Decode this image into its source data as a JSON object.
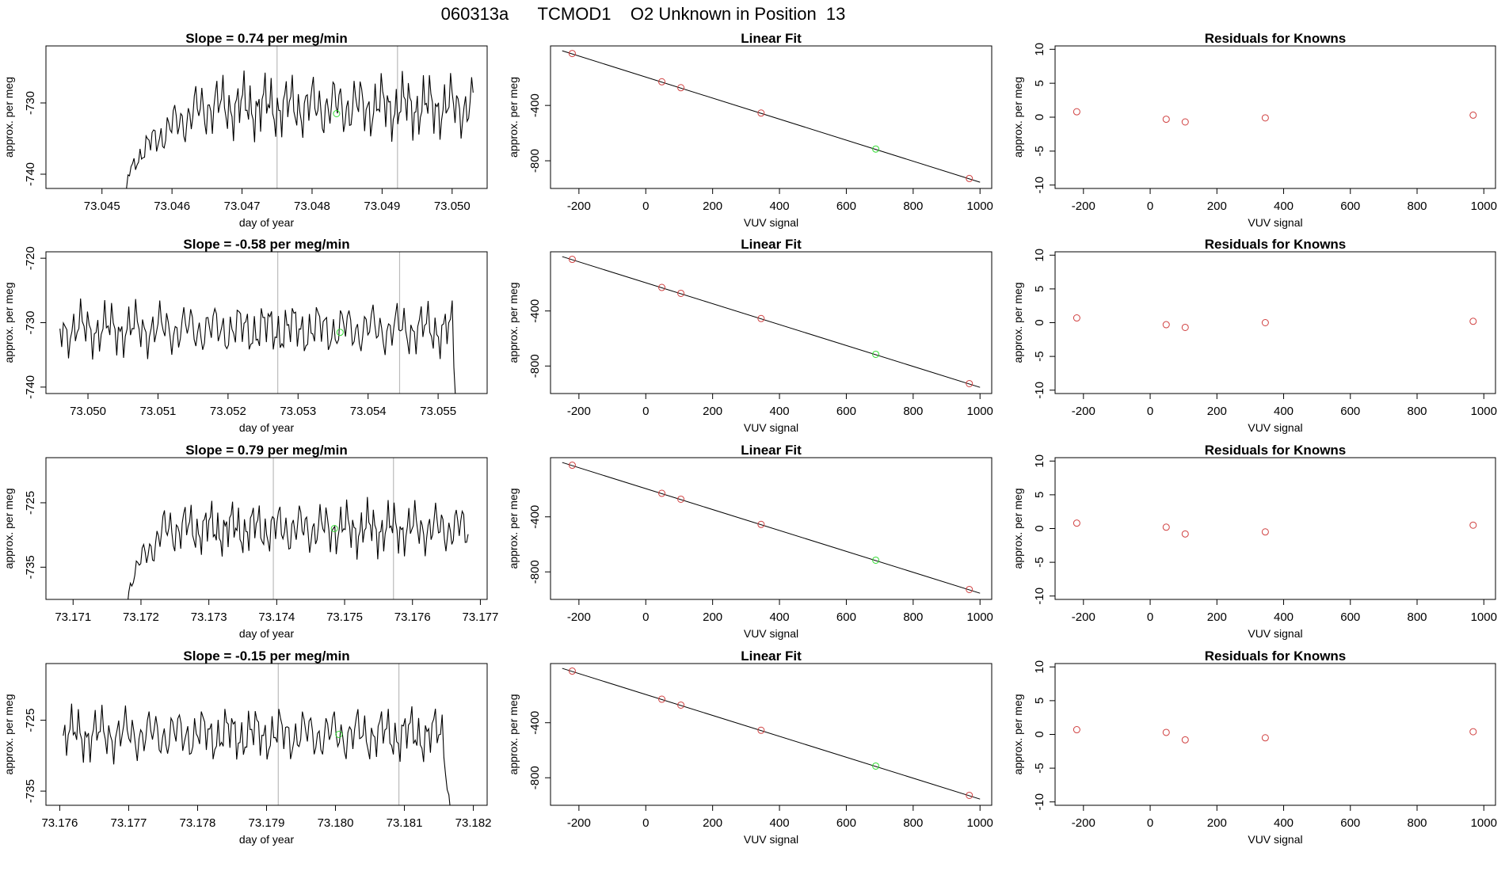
{
  "page_title": "060313a      TCMOD1    O2 Unknown in Position  13",
  "colors": {
    "known": "#d04040",
    "unknown": "#33dd33",
    "line": "#000000",
    "guide": "#bbbbbb",
    "frame": "#000000"
  },
  "chart_data": [
    {
      "row": 1,
      "panel": "timeseries",
      "type": "line",
      "title": "Slope =  0.74  per meg/min",
      "xlabel": "day of year",
      "ylabel": "approx. per meg",
      "xlim": [
        73.0442,
        73.0505
      ],
      "ylim": [
        -742,
        -722
      ],
      "xticks": [
        73.045,
        73.046,
        73.047,
        73.048,
        73.049,
        73.05
      ],
      "xtick_labels": [
        "73.045",
        "73.046",
        "73.047",
        "73.048",
        "73.049",
        "73.050"
      ],
      "yticks": [
        -740,
        -730
      ],
      "ytick_labels": [
        "-740",
        "-730"
      ],
      "series_start": 73.04535,
      "series_end": 73.0503,
      "baseline": -730.5,
      "amplitude": 2.8,
      "ramp_end": 73.0465,
      "ramp_from": -742,
      "vlines": [
        73.0475,
        73.04922
      ],
      "unknown_point": {
        "x": 73.04835,
        "y": -731.5
      }
    },
    {
      "row": 1,
      "panel": "fit",
      "type": "scatter",
      "title": "Linear Fit",
      "xlabel": "VUV signal",
      "ylabel": "approx. per meg",
      "xlim": [
        -285,
        1035
      ],
      "ylim": [
        -1000,
        30
      ],
      "xticks": [
        -200,
        0,
        200,
        400,
        600,
        800,
        1000
      ],
      "xtick_labels": [
        "-200",
        "0",
        "200",
        "400",
        "600",
        "800",
        "1000"
      ],
      "yticks": [
        -800,
        -400
      ],
      "ytick_labels": [
        "-800",
        "-400"
      ],
      "fit_line": {
        "x": [
          -250,
          1000
        ],
        "y": [
          -5,
          -955
        ]
      },
      "known_points": [
        {
          "x": -220,
          "y": -25
        },
        {
          "x": 48,
          "y": -229
        },
        {
          "x": 105,
          "y": -272
        },
        {
          "x": 345,
          "y": -455
        },
        {
          "x": 968,
          "y": -928
        }
      ],
      "unknown_point": {
        "x": 688,
        "y": -715
      }
    },
    {
      "row": 1,
      "panel": "residuals",
      "type": "scatter",
      "title": "Residuals for Knowns",
      "xlabel": "VUV signal",
      "ylabel": "approx. per meg",
      "xlim": [
        -285,
        1035
      ],
      "ylim": [
        -10.5,
        10.5
      ],
      "xticks": [
        -200,
        0,
        200,
        400,
        600,
        800,
        1000
      ],
      "xtick_labels": [
        "-200",
        "0",
        "200",
        "400",
        "600",
        "800",
        "1000"
      ],
      "yticks": [
        -10,
        -5,
        0,
        5,
        10
      ],
      "ytick_labels": [
        "-10",
        "-5",
        "0",
        "5",
        "10"
      ],
      "known_points": [
        {
          "x": -220,
          "y": 0.8
        },
        {
          "x": 48,
          "y": -0.3
        },
        {
          "x": 105,
          "y": -0.7
        },
        {
          "x": 345,
          "y": -0.1
        },
        {
          "x": 968,
          "y": 0.3
        }
      ]
    },
    {
      "row": 2,
      "panel": "timeseries",
      "type": "line",
      "title": "Slope =  -0.58  per meg/min",
      "xlabel": "day of year",
      "ylabel": "approx. per meg",
      "xlim": [
        73.0494,
        73.0557
      ],
      "ylim": [
        -741,
        -719
      ],
      "xticks": [
        73.05,
        73.051,
        73.052,
        73.053,
        73.054,
        73.055
      ],
      "xtick_labels": [
        "73.050",
        "73.051",
        "73.052",
        "73.053",
        "73.054",
        "73.055"
      ],
      "yticks": [
        -740,
        -730,
        -720
      ],
      "ytick_labels": [
        "-740",
        "-730",
        "-720"
      ],
      "series_start": 73.0496,
      "series_end": 73.05525,
      "baseline": -731,
      "amplitude": 2.6,
      "drop_start": 73.0552,
      "drop_to": -742,
      "vlines": [
        73.05271,
        73.05445
      ],
      "unknown_point": {
        "x": 73.0536,
        "y": -731.5
      }
    },
    {
      "row": 2,
      "panel": "fit",
      "type": "scatter",
      "title": "Linear Fit",
      "xlabel": "VUV signal",
      "ylabel": "approx. per meg",
      "xlim": [
        -285,
        1035
      ],
      "ylim": [
        -1000,
        30
      ],
      "xticks": [
        -200,
        0,
        200,
        400,
        600,
        800,
        1000
      ],
      "xtick_labels": [
        "-200",
        "0",
        "200",
        "400",
        "600",
        "800",
        "1000"
      ],
      "yticks": [
        -800,
        -400
      ],
      "ytick_labels": [
        "-800",
        "-400"
      ],
      "fit_line": {
        "x": [
          -250,
          1000
        ],
        "y": [
          -5,
          -955
        ]
      },
      "known_points": [
        {
          "x": -220,
          "y": -25
        },
        {
          "x": 48,
          "y": -229
        },
        {
          "x": 105,
          "y": -272
        },
        {
          "x": 345,
          "y": -455
        },
        {
          "x": 968,
          "y": -928
        }
      ],
      "unknown_point": {
        "x": 688,
        "y": -715
      }
    },
    {
      "row": 2,
      "panel": "residuals",
      "type": "scatter",
      "title": "Residuals for Knowns",
      "xlabel": "VUV signal",
      "ylabel": "approx. per meg",
      "xlim": [
        -285,
        1035
      ],
      "ylim": [
        -10.5,
        10.5
      ],
      "xticks": [
        -200,
        0,
        200,
        400,
        600,
        800,
        1000
      ],
      "xtick_labels": [
        "-200",
        "0",
        "200",
        "400",
        "600",
        "800",
        "1000"
      ],
      "yticks": [
        -10,
        -5,
        0,
        5,
        10
      ],
      "ytick_labels": [
        "-10",
        "-5",
        "0",
        "5",
        "10"
      ],
      "known_points": [
        {
          "x": -220,
          "y": 0.7
        },
        {
          "x": 48,
          "y": -0.3
        },
        {
          "x": 105,
          "y": -0.7
        },
        {
          "x": 345,
          "y": 0.0
        },
        {
          "x": 968,
          "y": 0.2
        }
      ]
    },
    {
      "row": 3,
      "panel": "timeseries",
      "type": "line",
      "title": "Slope =  0.79  per meg/min",
      "xlabel": "day of year",
      "ylabel": "approx. per meg",
      "xlim": [
        73.1706,
        73.1771
      ],
      "ylim": [
        -740,
        -718
      ],
      "xticks": [
        73.171,
        73.172,
        73.173,
        73.174,
        73.175,
        73.176,
        73.177
      ],
      "xtick_labels": [
        "73.171",
        "73.172",
        "73.173",
        "73.174",
        "73.175",
        "73.176",
        "73.177"
      ],
      "yticks": [
        -735,
        -725
      ],
      "ytick_labels": [
        "-735",
        "-725"
      ],
      "series_start": 73.1718,
      "series_end": 73.17682,
      "baseline": -729,
      "amplitude": 2.6,
      "ramp_end": 73.1724,
      "ramp_from": -741,
      "vlines": [
        73.17395,
        73.17572
      ],
      "unknown_point": {
        "x": 73.17485,
        "y": -729
      }
    },
    {
      "row": 3,
      "panel": "fit",
      "type": "scatter",
      "title": "Linear Fit",
      "xlabel": "VUV signal",
      "ylabel": "approx. per meg",
      "xlim": [
        -285,
        1035
      ],
      "ylim": [
        -1000,
        30
      ],
      "xticks": [
        -200,
        0,
        200,
        400,
        600,
        800,
        1000
      ],
      "xtick_labels": [
        "-200",
        "0",
        "200",
        "400",
        "600",
        "800",
        "1000"
      ],
      "yticks": [
        -800,
        -400
      ],
      "ytick_labels": [
        "-800",
        "-400"
      ],
      "fit_line": {
        "x": [
          -250,
          1000
        ],
        "y": [
          -5,
          -955
        ]
      },
      "known_points": [
        {
          "x": -220,
          "y": -25
        },
        {
          "x": 48,
          "y": -229
        },
        {
          "x": 105,
          "y": -272
        },
        {
          "x": 345,
          "y": -455
        },
        {
          "x": 968,
          "y": -928
        }
      ],
      "unknown_point": {
        "x": 688,
        "y": -715
      }
    },
    {
      "row": 3,
      "panel": "residuals",
      "type": "scatter",
      "title": "Residuals for Knowns",
      "xlabel": "VUV signal",
      "ylabel": "approx. per meg",
      "xlim": [
        -285,
        1035
      ],
      "ylim": [
        -10.5,
        10.5
      ],
      "xticks": [
        -200,
        0,
        200,
        400,
        600,
        800,
        1000
      ],
      "xtick_labels": [
        "-200",
        "0",
        "200",
        "400",
        "600",
        "800",
        "1000"
      ],
      "yticks": [
        -10,
        -5,
        0,
        5,
        10
      ],
      "ytick_labels": [
        "-10",
        "-5",
        "0",
        "5",
        "10"
      ],
      "known_points": [
        {
          "x": -220,
          "y": 0.8
        },
        {
          "x": 48,
          "y": 0.2
        },
        {
          "x": 105,
          "y": -0.8
        },
        {
          "x": 345,
          "y": -0.5
        },
        {
          "x": 968,
          "y": 0.5
        }
      ]
    },
    {
      "row": 4,
      "panel": "timeseries",
      "type": "line",
      "title": "Slope =  -0.15  per meg/min",
      "xlabel": "day of year",
      "ylabel": "approx. per meg",
      "xlim": [
        73.1758,
        73.1822
      ],
      "ylim": [
        -737,
        -717
      ],
      "xticks": [
        73.176,
        73.177,
        73.178,
        73.179,
        73.18,
        73.181,
        73.182
      ],
      "xtick_labels": [
        "73.176",
        "73.177",
        "73.178",
        "73.179",
        "73.180",
        "73.181",
        "73.182"
      ],
      "yticks": [
        -735,
        -725
      ],
      "ytick_labels": [
        "-735",
        "-725"
      ],
      "series_start": 73.17605,
      "series_end": 73.18167,
      "baseline": -727,
      "amplitude": 2.4,
      "drop_start": 73.18155,
      "drop_to": -738,
      "vlines": [
        73.17917,
        73.18092
      ],
      "unknown_point": {
        "x": 73.18005,
        "y": -727
      }
    },
    {
      "row": 4,
      "panel": "fit",
      "type": "scatter",
      "title": "Linear Fit",
      "xlabel": "VUV signal",
      "ylabel": "approx. per meg",
      "xlim": [
        -285,
        1035
      ],
      "ylim": [
        -1000,
        30
      ],
      "xticks": [
        -200,
        0,
        200,
        400,
        600,
        800,
        1000
      ],
      "xtick_labels": [
        "-200",
        "0",
        "200",
        "400",
        "600",
        "800",
        "1000"
      ],
      "yticks": [
        -800,
        -400
      ],
      "ytick_labels": [
        "-800",
        "-400"
      ],
      "fit_line": {
        "x": [
          -250,
          1000
        ],
        "y": [
          -5,
          -955
        ]
      },
      "known_points": [
        {
          "x": -220,
          "y": -25
        },
        {
          "x": 48,
          "y": -229
        },
        {
          "x": 105,
          "y": -272
        },
        {
          "x": 345,
          "y": -455
        },
        {
          "x": 968,
          "y": -928
        }
      ],
      "unknown_point": {
        "x": 688,
        "y": -715
      }
    },
    {
      "row": 4,
      "panel": "residuals",
      "type": "scatter",
      "title": "Residuals for Knowns",
      "xlabel": "VUV signal",
      "ylabel": "approx. per meg",
      "xlim": [
        -285,
        1035
      ],
      "ylim": [
        -10.5,
        10.5
      ],
      "xticks": [
        -200,
        0,
        200,
        400,
        600,
        800,
        1000
      ],
      "xtick_labels": [
        "-200",
        "0",
        "200",
        "400",
        "600",
        "800",
        "1000"
      ],
      "yticks": [
        -10,
        -5,
        0,
        5,
        10
      ],
      "ytick_labels": [
        "-10",
        "-5",
        "0",
        "5",
        "10"
      ],
      "known_points": [
        {
          "x": -220,
          "y": 0.7
        },
        {
          "x": 48,
          "y": 0.3
        },
        {
          "x": 105,
          "y": -0.8
        },
        {
          "x": 345,
          "y": -0.5
        },
        {
          "x": 968,
          "y": 0.4
        }
      ]
    }
  ]
}
